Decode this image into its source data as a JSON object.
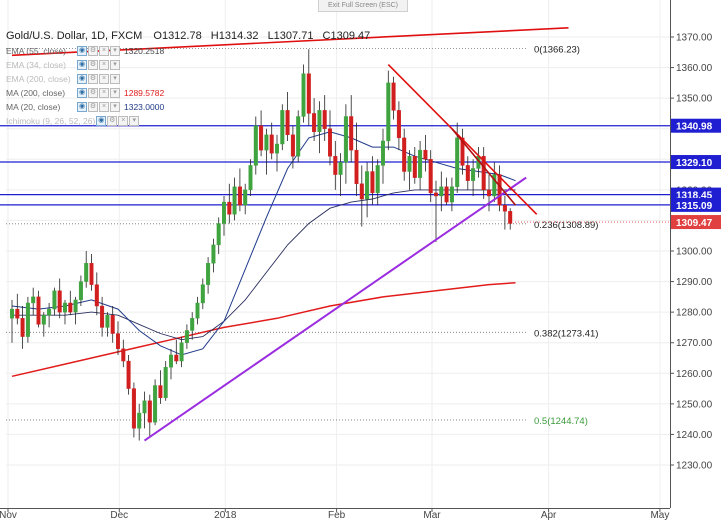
{
  "exit_button": "Exit Full Screen (ESC)",
  "header": {
    "symbol": "Gold/U.S. Dollar, 1D, FXCM",
    "open": "O1312.78",
    "high": "H1314.32",
    "low": "L1307.71",
    "close": "C1309.47"
  },
  "indicators": [
    {
      "label": "EMA (55, close)",
      "value": "1320.2518",
      "color": "#444444",
      "faded": false
    },
    {
      "label": "EMA (34, close)",
      "value": "",
      "color": "",
      "faded": true
    },
    {
      "label": "EMA (200, close)",
      "value": "",
      "color": "",
      "faded": true
    },
    {
      "label": "MA (200, close)",
      "value": "1289.5782",
      "color": "#e21b1b",
      "faded": false
    },
    {
      "label": "MA (20, close)",
      "value": "1323.0000",
      "color": "#1f3a8a",
      "faded": false
    },
    {
      "label": "Ichimoku (9, 26, 52, 26)",
      "value": "",
      "color": "",
      "faded": true
    }
  ],
  "colors": {
    "bull": "#3fa33f",
    "bear": "#d11f1f",
    "horizontal_lines": "#1f1fd1",
    "trendline_support": "#9b2de0",
    "trendline_resistance": "#e01010",
    "ma200": "#e21b1b",
    "ma20": "#1f3a8a",
    "last_price": "#e04040"
  },
  "chart_data": {
    "type": "candlestick",
    "instrument": "Gold/U.S. Dollar",
    "timeframe": "1D",
    "y_ticks": [
      1230,
      1240,
      1250,
      1260,
      1270,
      1280,
      1290,
      1300,
      1310,
      1320,
      1330,
      1340,
      1350,
      1360,
      1370
    ],
    "y_tick_labels": [
      "1230.00",
      "1240.00",
      "1250.00",
      "1260.00",
      "1270.00",
      "1280.00",
      "1290.00",
      "1300.00",
      "1310.00",
      "1320.00",
      "1330.00",
      "1340.00",
      "1350.00",
      "1360.00",
      "1370.00"
    ],
    "x_labels": [
      {
        "label": "Nov",
        "bar": 0
      },
      {
        "label": "Dec",
        "bar": 21
      },
      {
        "label": "2018",
        "bar": 41
      },
      {
        "label": "Feb",
        "bar": 62
      },
      {
        "label": "Mar",
        "bar": 80
      },
      {
        "label": "Apr",
        "bar": 102
      },
      {
        "label": "May",
        "bar": 123
      }
    ],
    "horizontal_levels": [
      {
        "value": 1340.98,
        "label": "1340.98"
      },
      {
        "value": 1329.1,
        "label": "1329.10"
      },
      {
        "value": 1318.45,
        "label": "1318.45"
      },
      {
        "value": 1315.09,
        "label": "1315.09"
      }
    ],
    "last_price": {
      "value": 1309.47,
      "label": "1309.47"
    },
    "fibonacci": [
      {
        "level": "0",
        "value": 1366.23,
        "label": "0(1366.23)",
        "color": "#222222"
      },
      {
        "level": "0.236",
        "value": 1308.89,
        "label": "0.236(1308.89)",
        "color": "#222222"
      },
      {
        "level": "0.382",
        "value": 1273.41,
        "label": "0.382(1273.41)",
        "color": "#222222"
      },
      {
        "level": "0.5",
        "value": 1244.74,
        "label": "0.5(1244.74)",
        "color": "#3a9a3a"
      }
    ],
    "trendlines": [
      {
        "name": "support",
        "from": {
          "bar": 25,
          "y": 1238
        },
        "to": {
          "bar": 97,
          "y": 1324
        }
      },
      {
        "name": "resistance-a",
        "from": {
          "bar": 71,
          "y": 1361
        },
        "to": {
          "bar": 99,
          "y": 1312
        }
      },
      {
        "name": "resistance-b",
        "from": {
          "bar": 83,
          "y": 1340
        },
        "to": {
          "bar": 95,
          "y": 1315
        }
      },
      {
        "name": "long-term",
        "from": {
          "bar": 0,
          "y": 1364
        },
        "to": {
          "bar": 105,
          "y": 1373
        }
      }
    ],
    "candles": [
      [
        1278,
        1284,
        1270,
        1281
      ],
      [
        1281,
        1286,
        1276,
        1278
      ],
      [
        1278,
        1282,
        1268,
        1272
      ],
      [
        1272,
        1285,
        1270,
        1283
      ],
      [
        1283,
        1288,
        1279,
        1285
      ],
      [
        1285,
        1287,
        1275,
        1276
      ],
      [
        1276,
        1280,
        1272,
        1279
      ],
      [
        1279,
        1283,
        1275,
        1281
      ],
      [
        1281,
        1288,
        1279,
        1287
      ],
      [
        1287,
        1291,
        1278,
        1280
      ],
      [
        1280,
        1284,
        1276,
        1283
      ],
      [
        1283,
        1287,
        1279,
        1280
      ],
      [
        1280,
        1285,
        1276,
        1284
      ],
      [
        1284,
        1292,
        1282,
        1290
      ],
      [
        1290,
        1300,
        1288,
        1296
      ],
      [
        1296,
        1299,
        1287,
        1289
      ],
      [
        1289,
        1293,
        1279,
        1282
      ],
      [
        1282,
        1285,
        1272,
        1275
      ],
      [
        1275,
        1280,
        1272,
        1279
      ],
      [
        1279,
        1282,
        1270,
        1273
      ],
      [
        1273,
        1277,
        1266,
        1268
      ],
      [
        1268,
        1271,
        1262,
        1264
      ],
      [
        1264,
        1266,
        1253,
        1255
      ],
      [
        1255,
        1257,
        1239,
        1242
      ],
      [
        1242,
        1250,
        1238,
        1247
      ],
      [
        1247,
        1254,
        1242,
        1251
      ],
      [
        1251,
        1253,
        1239,
        1244
      ],
      [
        1244,
        1258,
        1243,
        1256
      ],
      [
        1256,
        1261,
        1250,
        1252
      ],
      [
        1252,
        1264,
        1251,
        1262
      ],
      [
        1262,
        1268,
        1258,
        1266
      ],
      [
        1266,
        1271,
        1263,
        1264
      ],
      [
        1264,
        1272,
        1262,
        1270
      ],
      [
        1270,
        1276,
        1268,
        1274
      ],
      [
        1274,
        1280,
        1271,
        1278
      ],
      [
        1278,
        1285,
        1276,
        1283
      ],
      [
        1283,
        1291,
        1281,
        1289
      ],
      [
        1289,
        1298,
        1286,
        1296
      ],
      [
        1296,
        1304,
        1293,
        1302
      ],
      [
        1302,
        1311,
        1299,
        1309
      ],
      [
        1309,
        1318,
        1305,
        1316
      ],
      [
        1316,
        1322,
        1309,
        1312
      ],
      [
        1312,
        1324,
        1310,
        1321
      ],
      [
        1321,
        1327,
        1313,
        1315
      ],
      [
        1315,
        1322,
        1312,
        1320
      ],
      [
        1320,
        1330,
        1318,
        1328
      ],
      [
        1328,
        1344,
        1325,
        1341
      ],
      [
        1341,
        1346,
        1331,
        1333
      ],
      [
        1333,
        1340,
        1325,
        1338
      ],
      [
        1338,
        1342,
        1330,
        1332
      ],
      [
        1332,
        1338,
        1326,
        1335
      ],
      [
        1335,
        1348,
        1333,
        1346
      ],
      [
        1346,
        1352,
        1336,
        1338
      ],
      [
        1338,
        1341,
        1327,
        1331
      ],
      [
        1331,
        1346,
        1329,
        1344
      ],
      [
        1344,
        1361,
        1342,
        1358
      ],
      [
        1358,
        1366,
        1341,
        1345
      ],
      [
        1345,
        1350,
        1336,
        1339
      ],
      [
        1339,
        1349,
        1332,
        1346
      ],
      [
        1346,
        1351,
        1336,
        1340
      ],
      [
        1340,
        1346,
        1328,
        1331
      ],
      [
        1331,
        1336,
        1320,
        1325
      ],
      [
        1325,
        1332,
        1318,
        1329
      ],
      [
        1329,
        1348,
        1322,
        1344
      ],
      [
        1344,
        1351,
        1329,
        1333
      ],
      [
        1333,
        1342,
        1318,
        1322
      ],
      [
        1322,
        1328,
        1308,
        1317
      ],
      [
        1317,
        1329,
        1311,
        1326
      ],
      [
        1326,
        1331,
        1315,
        1319
      ],
      [
        1319,
        1330,
        1315,
        1328
      ],
      [
        1328,
        1340,
        1322,
        1336
      ],
      [
        1336,
        1359,
        1333,
        1355
      ],
      [
        1355,
        1357,
        1343,
        1346
      ],
      [
        1346,
        1349,
        1333,
        1337
      ],
      [
        1337,
        1340,
        1323,
        1326
      ],
      [
        1326,
        1333,
        1320,
        1331
      ],
      [
        1331,
        1334,
        1322,
        1324
      ],
      [
        1324,
        1336,
        1320,
        1333
      ],
      [
        1333,
        1338,
        1326,
        1330
      ],
      [
        1330,
        1333,
        1316,
        1319
      ],
      [
        1319,
        1323,
        1303,
        1318
      ],
      [
        1318,
        1326,
        1313,
        1321
      ],
      [
        1321,
        1324,
        1315,
        1316
      ],
      [
        1316,
        1324,
        1313,
        1321
      ],
      [
        1321,
        1342,
        1319,
        1337
      ],
      [
        1337,
        1340,
        1325,
        1328
      ],
      [
        1328,
        1331,
        1320,
        1323
      ],
      [
        1323,
        1330,
        1318,
        1327
      ],
      [
        1327,
        1334,
        1324,
        1331
      ],
      [
        1331,
        1334,
        1317,
        1320
      ],
      [
        1320,
        1325,
        1313,
        1318
      ],
      [
        1318,
        1329,
        1316,
        1325
      ],
      [
        1325,
        1328,
        1313,
        1315
      ],
      [
        1315,
        1318,
        1307,
        1313
      ],
      [
        1313,
        1314,
        1307,
        1309
      ]
    ],
    "ma200": [
      [
        0,
        1259
      ],
      [
        10,
        1263
      ],
      [
        20,
        1267
      ],
      [
        30,
        1271
      ],
      [
        40,
        1275
      ],
      [
        50,
        1278
      ],
      [
        60,
        1282
      ],
      [
        70,
        1285
      ],
      [
        80,
        1287
      ],
      [
        90,
        1289
      ],
      [
        95,
        1289.6
      ]
    ],
    "ma20": [
      [
        0,
        1282
      ],
      [
        5,
        1281
      ],
      [
        10,
        1282
      ],
      [
        15,
        1284
      ],
      [
        20,
        1281
      ],
      [
        24,
        1274
      ],
      [
        28,
        1269
      ],
      [
        32,
        1266
      ],
      [
        36,
        1268
      ],
      [
        40,
        1277
      ],
      [
        44,
        1294
      ],
      [
        48,
        1311
      ],
      [
        52,
        1327
      ],
      [
        56,
        1337
      ],
      [
        60,
        1339
      ],
      [
        64,
        1337
      ],
      [
        68,
        1334
      ],
      [
        72,
        1334
      ],
      [
        76,
        1331
      ],
      [
        80,
        1329
      ],
      [
        84,
        1327
      ],
      [
        88,
        1326
      ],
      [
        92,
        1325
      ],
      [
        95,
        1323
      ]
    ],
    "ema55": [
      [
        0,
        1279
      ],
      [
        5,
        1279
      ],
      [
        10,
        1279
      ],
      [
        15,
        1280
      ],
      [
        20,
        1279
      ],
      [
        24,
        1276
      ],
      [
        28,
        1273
      ],
      [
        32,
        1271
      ],
      [
        36,
        1272
      ],
      [
        40,
        1277
      ],
      [
        44,
        1284
      ],
      [
        48,
        1293
      ],
      [
        52,
        1302
      ],
      [
        56,
        1309
      ],
      [
        60,
        1314
      ],
      [
        64,
        1316
      ],
      [
        68,
        1317
      ],
      [
        72,
        1319
      ],
      [
        76,
        1320
      ],
      [
        80,
        1320
      ],
      [
        84,
        1320
      ],
      [
        88,
        1320
      ],
      [
        92,
        1320
      ],
      [
        95,
        1320
      ]
    ]
  }
}
